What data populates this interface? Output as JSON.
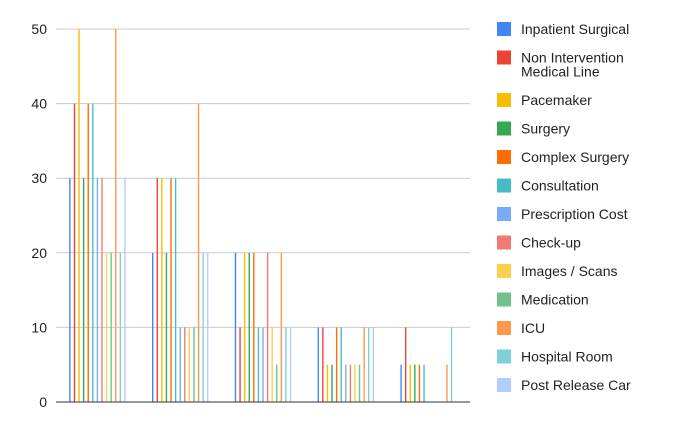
{
  "chart_data": {
    "type": "bar",
    "categories": [
      "",
      "",
      "",
      "",
      ""
    ],
    "ylim": [
      0,
      50
    ],
    "yticks": [
      0,
      10,
      20,
      30,
      40,
      50
    ],
    "grid": true,
    "legend_position": "right",
    "series": [
      {
        "name": "Inpatient Surgical",
        "color": "#4285f4",
        "values": [
          30,
          20,
          20,
          10,
          5
        ]
      },
      {
        "name": "Non Intervention Medical Line",
        "color": "#ea4335",
        "values": [
          40,
          30,
          10,
          10,
          10
        ]
      },
      {
        "name": "Pacemaker",
        "color": "#fbbc04",
        "values": [
          50,
          30,
          20,
          5,
          5
        ]
      },
      {
        "name": "Surgery",
        "color": "#34a853",
        "values": [
          30,
          20,
          20,
          5,
          5
        ]
      },
      {
        "name": "Complex Surgery",
        "color": "#ff6d01",
        "values": [
          40,
          30,
          20,
          10,
          5
        ]
      },
      {
        "name": "Consultation",
        "color": "#46bdc6",
        "values": [
          40,
          30,
          10,
          10,
          5
        ]
      },
      {
        "name": "Prescription Cost",
        "color": "#7baaf7",
        "values": [
          30,
          10,
          10,
          5,
          0
        ]
      },
      {
        "name": "Check-up",
        "color": "#f07b72",
        "values": [
          30,
          10,
          20,
          5,
          0
        ]
      },
      {
        "name": "Images / Scans",
        "color": "#fcd04f",
        "values": [
          20,
          10,
          10,
          5,
          0
        ]
      },
      {
        "name": "Medication",
        "color": "#71c287",
        "values": [
          20,
          10,
          5,
          5,
          0
        ]
      },
      {
        "name": "ICU",
        "color": "#ff994d",
        "values": [
          50,
          40,
          20,
          10,
          5
        ]
      },
      {
        "name": "Hospital Room",
        "color": "#7ed1d7",
        "values": [
          20,
          20,
          10,
          10,
          10
        ]
      },
      {
        "name": "Post Release Car",
        "color": "#b3cefb",
        "values": [
          30,
          20,
          10,
          10,
          0
        ]
      }
    ]
  }
}
